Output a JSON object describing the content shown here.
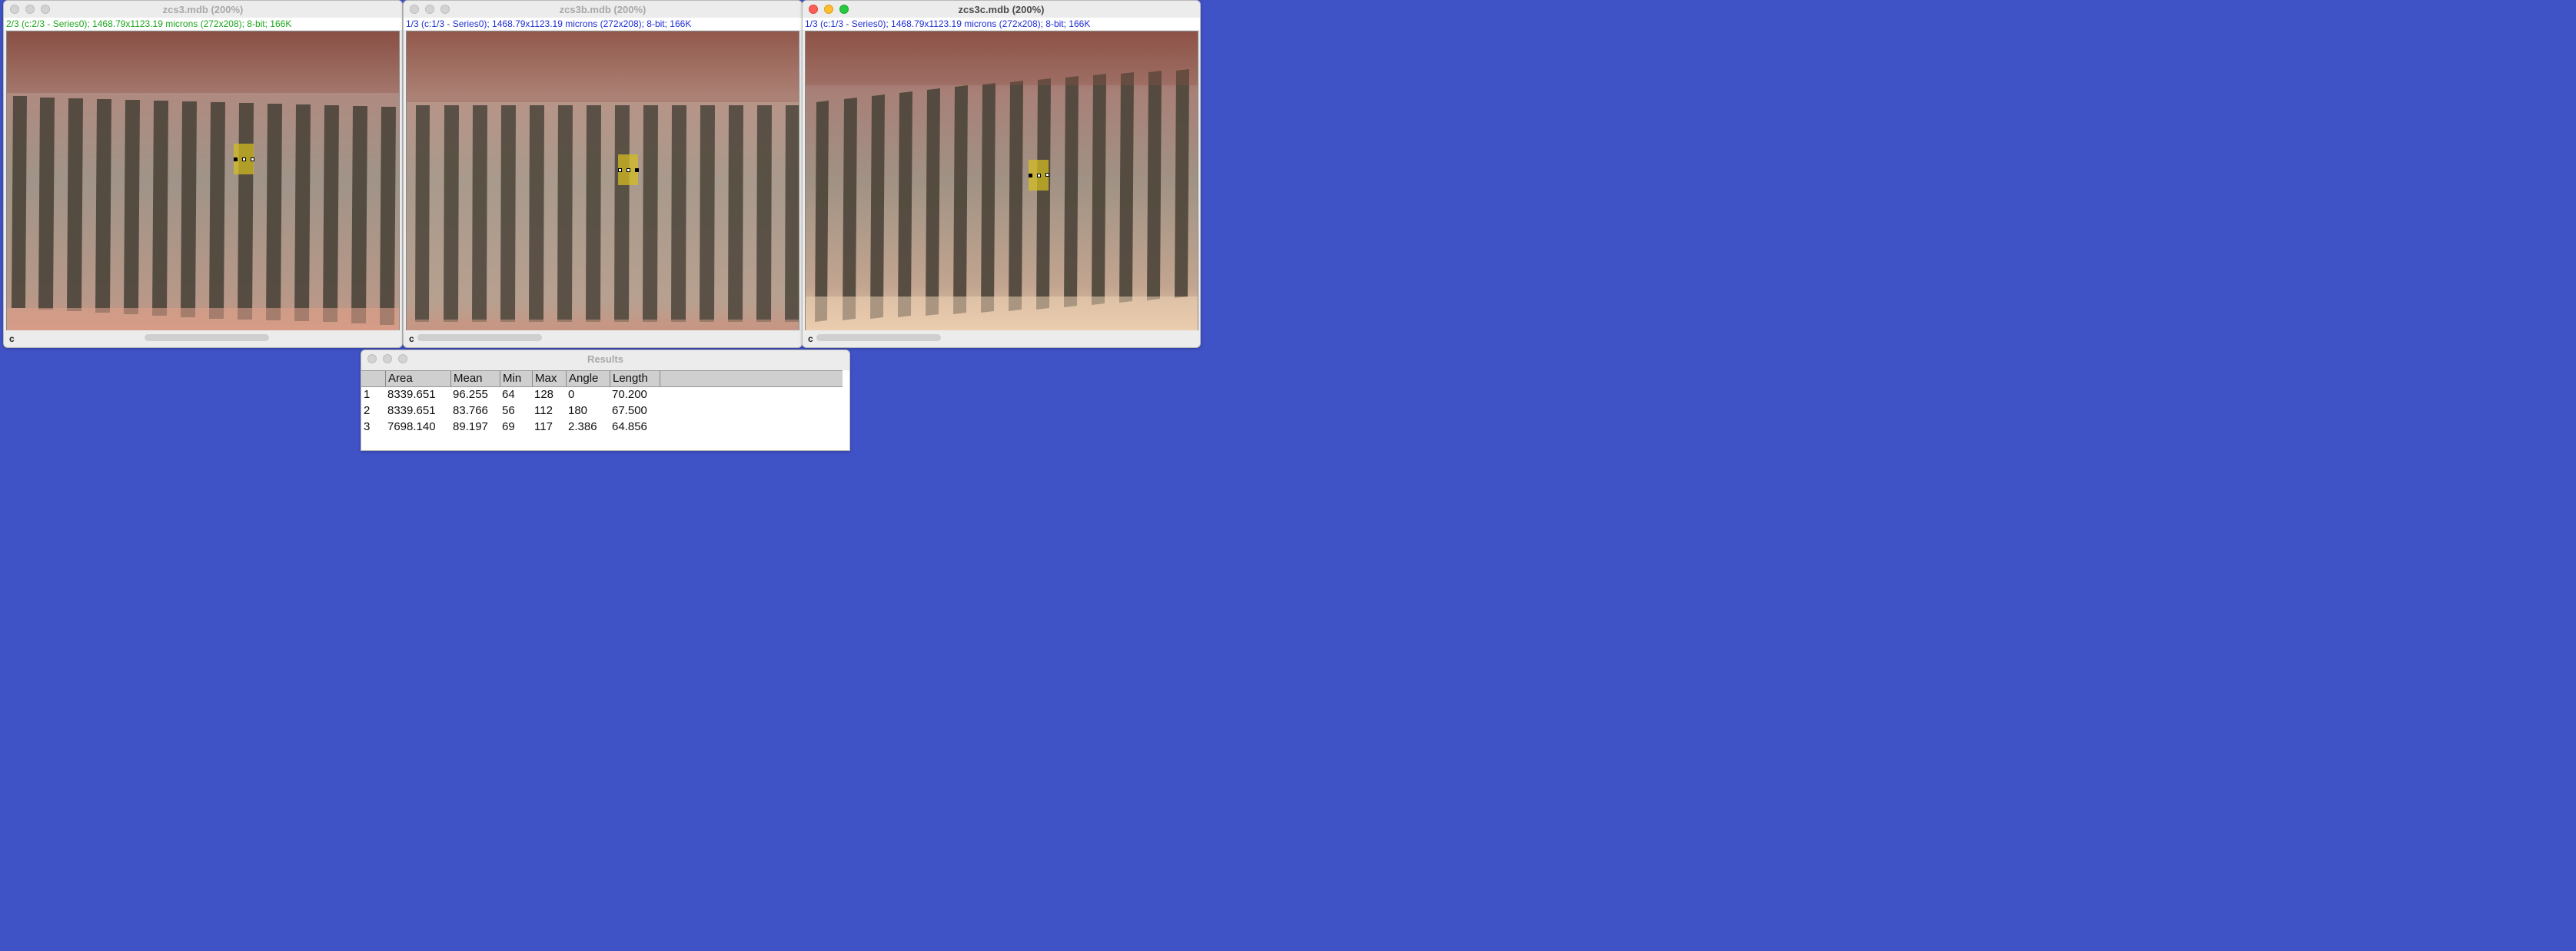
{
  "windows": [
    {
      "title": "zcs3.mdb (200%)",
      "info": "2/3 (c:2/3 - Series0); 1468.79x1123.19 microns (272x208); 8-bit; 166K",
      "info_color": "#1ea61e",
      "channel": "c",
      "active": false
    },
    {
      "title": "zcs3b.mdb (200%)",
      "info": "1/3 (c:1/3 - Series0); 1468.79x1123.19 microns (272x208); 8-bit; 166K",
      "info_color": "#1f2fd2",
      "channel": "c",
      "active": false
    },
    {
      "title": "zcs3c.mdb (200%)",
      "info": "1/3 (c:1/3 - Series0); 1468.79x1123.19 microns (272x208); 8-bit; 166K",
      "info_color": "#1f2fd2",
      "channel": "c",
      "active": true
    }
  ],
  "results": {
    "title": "Results",
    "columns": [
      "",
      "Area",
      "Mean",
      "Min",
      "Max",
      "Angle",
      "Length"
    ],
    "rows": [
      [
        "1",
        "8339.651",
        "96.255",
        "64",
        "128",
        "0",
        "70.200"
      ],
      [
        "2",
        "8339.651",
        "83.766",
        "56",
        "112",
        "180",
        "67.500"
      ],
      [
        "3",
        "7698.140",
        "89.197",
        "69",
        "117",
        "2.386",
        "64.856"
      ]
    ]
  },
  "colors": {
    "desktop": "#3f52c6",
    "roi": "#d6be1e"
  }
}
